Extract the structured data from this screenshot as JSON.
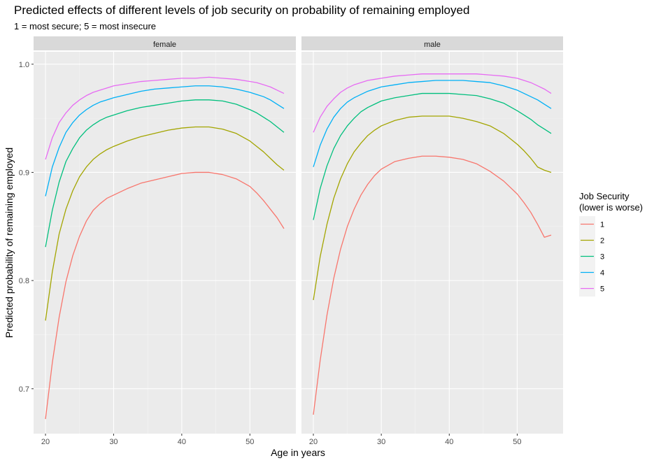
{
  "chart_data": {
    "type": "line",
    "title": "Predicted effects of different levels of job security on probability of remaining employed",
    "subtitle": "1 = most secure; 5 = most insecure",
    "xlabel": "Age in years",
    "ylabel": "Predicted probability of remaining employed",
    "xlim": [
      18.25,
      56.75
    ],
    "ylim": [
      0.6585,
      1.0115
    ],
    "x_ticks": [
      20,
      30,
      40,
      50
    ],
    "y_ticks": [
      0.7,
      0.8,
      0.9,
      1.0
    ],
    "y_tick_labels": [
      "0.7",
      "0.8",
      "0.9",
      "1.0"
    ],
    "grid": true,
    "background": "#ebebeb",
    "legend": {
      "title_line1": "Job Security",
      "title_line2": "(lower is worse)",
      "position": "right"
    },
    "series_colors": [
      "#f8766d",
      "#a3a500",
      "#00bf7d",
      "#00b0f6",
      "#e76bf3"
    ],
    "x": [
      20,
      21,
      22,
      23,
      24,
      25,
      26,
      27,
      28,
      29,
      30,
      32,
      34,
      36,
      38,
      40,
      42,
      44,
      46,
      48,
      50,
      51,
      52,
      53,
      54,
      55
    ],
    "panels": [
      {
        "label": "female",
        "series": [
          {
            "name": "1",
            "values": [
              0.672,
              0.724,
              0.766,
              0.799,
              0.823,
              0.841,
              0.855,
              0.865,
              0.871,
              0.876,
              0.879,
              0.885,
              0.89,
              0.893,
              0.896,
              0.899,
              0.9,
              0.9,
              0.898,
              0.894,
              0.887,
              0.881,
              0.874,
              0.866,
              0.858,
              0.848
            ]
          },
          {
            "name": "2",
            "values": [
              0.763,
              0.808,
              0.843,
              0.866,
              0.883,
              0.896,
              0.905,
              0.912,
              0.917,
              0.921,
              0.924,
              0.929,
              0.933,
              0.936,
              0.939,
              0.941,
              0.942,
              0.942,
              0.94,
              0.936,
              0.929,
              0.924,
              0.919,
              0.913,
              0.907,
              0.902
            ]
          },
          {
            "name": "3",
            "values": [
              0.831,
              0.865,
              0.891,
              0.91,
              0.922,
              0.932,
              0.939,
              0.944,
              0.948,
              0.951,
              0.953,
              0.957,
              0.96,
              0.962,
              0.964,
              0.966,
              0.967,
              0.967,
              0.966,
              0.963,
              0.958,
              0.955,
              0.951,
              0.947,
              0.942,
              0.937
            ]
          },
          {
            "name": "4",
            "values": [
              0.878,
              0.905,
              0.923,
              0.937,
              0.946,
              0.953,
              0.958,
              0.962,
              0.965,
              0.967,
              0.969,
              0.972,
              0.975,
              0.977,
              0.978,
              0.979,
              0.98,
              0.98,
              0.979,
              0.977,
              0.974,
              0.972,
              0.97,
              0.967,
              0.963,
              0.959
            ]
          },
          {
            "name": "5",
            "values": [
              0.912,
              0.932,
              0.946,
              0.955,
              0.962,
              0.967,
              0.971,
              0.974,
              0.976,
              0.978,
              0.98,
              0.982,
              0.984,
              0.985,
              0.986,
              0.987,
              0.987,
              0.988,
              0.987,
              0.986,
              0.984,
              0.983,
              0.981,
              0.979,
              0.976,
              0.973
            ]
          }
        ]
      },
      {
        "label": "male",
        "series": [
          {
            "name": "1",
            "values": [
              0.676,
              0.726,
              0.768,
              0.802,
              0.829,
              0.85,
              0.866,
              0.879,
              0.889,
              0.897,
              0.903,
              0.91,
              0.913,
              0.915,
              0.915,
              0.914,
              0.912,
              0.908,
              0.901,
              0.892,
              0.88,
              0.872,
              0.863,
              0.852,
              0.84,
              0.842
            ]
          },
          {
            "name": "2",
            "values": [
              0.782,
              0.822,
              0.852,
              0.876,
              0.894,
              0.908,
              0.919,
              0.927,
              0.934,
              0.939,
              0.943,
              0.948,
              0.951,
              0.952,
              0.952,
              0.952,
              0.95,
              0.947,
              0.943,
              0.936,
              0.926,
              0.92,
              0.913,
              0.905,
              0.902,
              0.9
            ]
          },
          {
            "name": "3",
            "values": [
              0.856,
              0.885,
              0.906,
              0.922,
              0.934,
              0.943,
              0.95,
              0.956,
              0.96,
              0.963,
              0.966,
              0.969,
              0.971,
              0.973,
              0.973,
              0.973,
              0.972,
              0.971,
              0.968,
              0.964,
              0.957,
              0.953,
              0.949,
              0.944,
              0.94,
              0.936
            ]
          },
          {
            "name": "4",
            "values": [
              0.905,
              0.925,
              0.94,
              0.951,
              0.959,
              0.965,
              0.969,
              0.972,
              0.975,
              0.977,
              0.979,
              0.981,
              0.983,
              0.984,
              0.985,
              0.985,
              0.985,
              0.984,
              0.983,
              0.98,
              0.976,
              0.973,
              0.97,
              0.967,
              0.963,
              0.959
            ]
          },
          {
            "name": "5",
            "values": [
              0.937,
              0.951,
              0.961,
              0.968,
              0.974,
              0.978,
              0.981,
              0.983,
              0.985,
              0.986,
              0.987,
              0.989,
              0.99,
              0.991,
              0.991,
              0.991,
              0.991,
              0.991,
              0.99,
              0.989,
              0.987,
              0.985,
              0.983,
              0.98,
              0.977,
              0.973
            ]
          }
        ]
      }
    ]
  }
}
